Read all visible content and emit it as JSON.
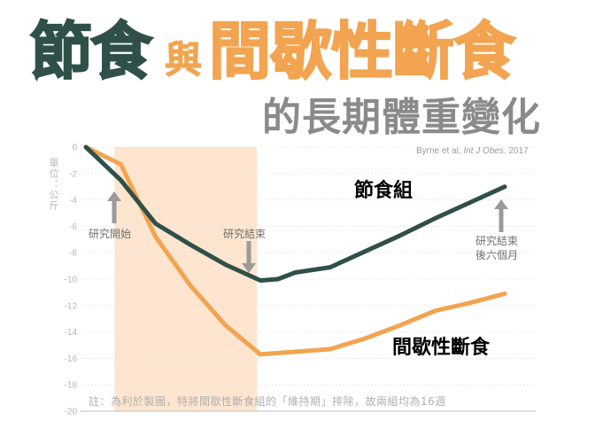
{
  "title": {
    "part1": "節食",
    "connector": "與",
    "part2": "間歇性斷食"
  },
  "subtitle": "的長期體重變化",
  "credit": {
    "authors": "Byrne et al, ",
    "journal": "Int J Obes",
    "year": ". 2017"
  },
  "unit_label": "單位：公斤",
  "annotations": {
    "study_start": "研究開始",
    "study_end": "研究結束",
    "followup_line1": "研究結束",
    "followup_line2": "後六個月"
  },
  "note": "註：為利於製圖，特將間歇性斷食組的「維持期」排除，故兩組均為16週",
  "colors": {
    "diet": "#2f5048",
    "fasting": "#f2a450",
    "band": "#fde5cf",
    "arrow": "#9a9a9a"
  },
  "chart_data": {
    "type": "line",
    "title": "節食與間歇性斷食的長期體重變化",
    "ylabel": "單位：公斤",
    "xlabel": "",
    "ylim": [
      -20,
      0
    ],
    "yticks": [
      0,
      -2,
      -4,
      -6,
      -8,
      -10,
      -12,
      -14,
      -16,
      -18,
      -20
    ],
    "grid": true,
    "shaded_region": [
      1,
      5
    ],
    "series": [
      {
        "name": "節食組",
        "color": "#2f5048",
        "x": [
          0,
          1,
          2,
          3,
          4,
          5,
          5.5,
          6,
          7,
          8,
          9,
          10,
          11,
          12
        ],
        "values": [
          0,
          -2.5,
          -5.8,
          -7.4,
          -8.9,
          -10.1,
          -10,
          -9.5,
          -9.1,
          -7.9,
          -6.7,
          -5.4,
          -4.2,
          -3
        ]
      },
      {
        "name": "間歇性斷食",
        "color": "#f2a450",
        "x": [
          0,
          1,
          2,
          3,
          4,
          5,
          5.5,
          6,
          7,
          8,
          9,
          10,
          11,
          12
        ],
        "values": [
          0,
          -1.3,
          -6.8,
          -10.5,
          -13.5,
          -15.7,
          -15.6,
          -15.5,
          -15.3,
          -14.5,
          -13.5,
          -12.4,
          -11.8,
          -11.1
        ]
      }
    ]
  }
}
